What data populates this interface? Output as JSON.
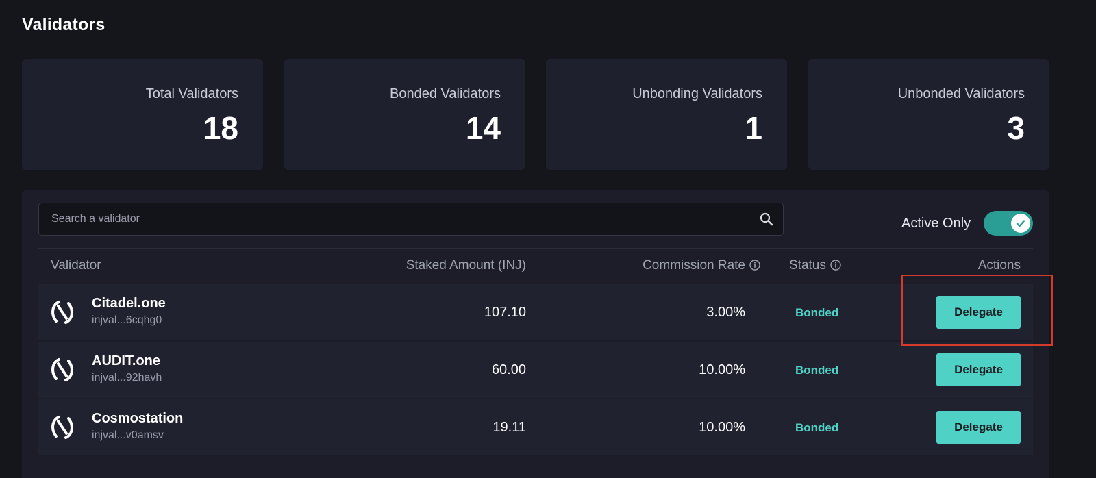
{
  "page": {
    "title": "Validators"
  },
  "stats": [
    {
      "label": "Total Validators",
      "value": "18"
    },
    {
      "label": "Bonded Validators",
      "value": "14"
    },
    {
      "label": "Unbonding Validators",
      "value": "1"
    },
    {
      "label": "Unbonded Validators",
      "value": "3"
    }
  ],
  "search": {
    "placeholder": "Search a validator",
    "value": ""
  },
  "filter": {
    "label": "Active Only",
    "enabled": true
  },
  "table": {
    "columns": [
      "Validator",
      "Staked Amount (INJ)",
      "Commission Rate",
      "Status",
      "Actions"
    ],
    "rows": [
      {
        "name": "Citadel.one",
        "address": "injval...6cqhg0",
        "staked": "107.10",
        "commission": "3.00%",
        "status": "Bonded",
        "action": "Delegate"
      },
      {
        "name": "AUDIT.one",
        "address": "injval...92havh",
        "staked": "60.00",
        "commission": "10.00%",
        "status": "Bonded",
        "action": "Delegate"
      },
      {
        "name": "Cosmostation",
        "address": "injval...v0amsv",
        "staked": "19.11",
        "commission": "10.00%",
        "status": "Bonded",
        "action": "Delegate"
      }
    ]
  },
  "colors": {
    "accent": "#4fd1c5",
    "toggle": "#2a9d94",
    "highlight": "#d63a2a"
  },
  "icons": {
    "search": "search-icon",
    "info": "info-icon",
    "check": "check-icon",
    "logo": "injective-logo-icon"
  }
}
